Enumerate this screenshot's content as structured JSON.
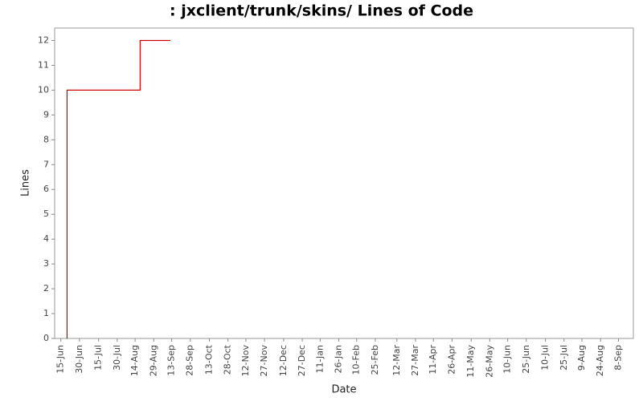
{
  "chart_data": {
    "type": "step",
    "title": ": jxclient/trunk/skins/ Lines of Code",
    "x_label": "Date",
    "y_label": "Lines",
    "series": [
      {
        "name": "Lines",
        "color": "#cc0000",
        "x": [
          "20-Jun",
          "20-Jun",
          "18-Aug",
          "12-Sep"
        ],
        "values": [
          0,
          10,
          12,
          12
        ]
      }
    ],
    "xlim": [
      "10-Jun",
      "20-Sep"
    ],
    "xticks": [
      "15-Jun",
      "30-Jun",
      "15-Jul",
      "30-Jul",
      "14-Aug",
      "29-Aug",
      "13-Sep",
      "28-Sep",
      "13-Oct",
      "28-Oct",
      "12-Nov",
      "27-Nov",
      "12-Dec",
      "27-Dec",
      "11-Jan",
      "26-Jan",
      "10-Feb",
      "25-Feb",
      "12-Mar",
      "27-Mar",
      "11-Apr",
      "26-Apr",
      "11-May",
      "26-May",
      "10-Jun",
      "25-Jun",
      "10-Jul",
      "25-Jul",
      "9-Aug",
      "24-Aug",
      "8-Sep"
    ],
    "ylim": [
      0,
      12.5
    ],
    "yticks": [
      0,
      1,
      2,
      3,
      4,
      5,
      6,
      7,
      8,
      9,
      10,
      11,
      12
    ],
    "grid": false
  }
}
